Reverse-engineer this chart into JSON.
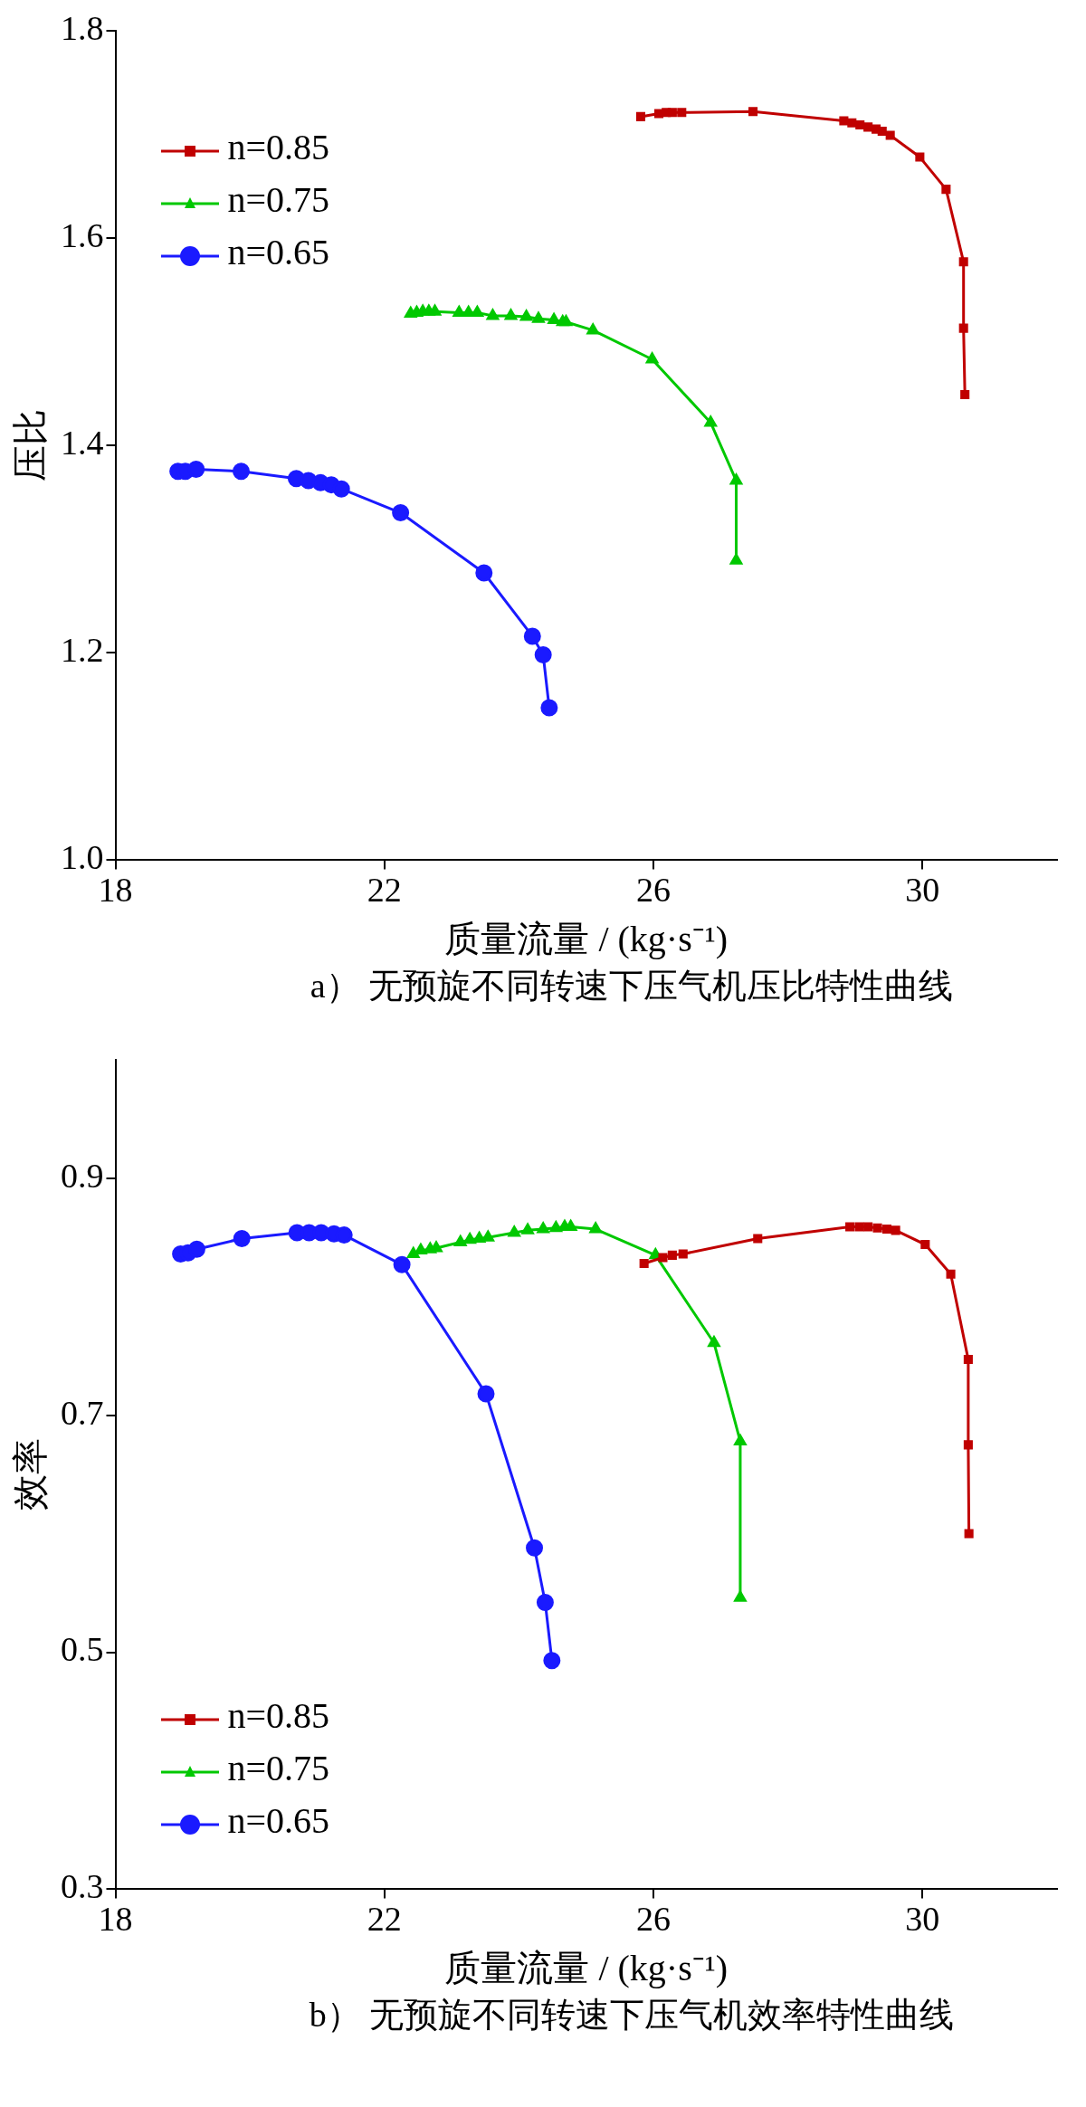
{
  "chart_data": [
    {
      "type": "line",
      "title": "a） 无预旋不同转速下压气机压比特性曲线",
      "xlabel": "质量流量 / (kg·s⁻¹)",
      "ylabel": "压比",
      "xlim": [
        18,
        32
      ],
      "xticks": [
        18,
        22,
        26,
        30
      ],
      "ylim": [
        1.0,
        1.8
      ],
      "yticks": [
        {
          "value": 1.0,
          "label": "1.0"
        },
        1.2,
        1.4,
        1.6,
        1.8
      ],
      "legend": "top left",
      "series": [
        {
          "name": "n=0.85",
          "color": "#c00000",
          "marker": "square",
          "x": [
            25.81,
            26.08,
            26.19,
            26.28,
            26.42,
            27.48,
            28.83,
            28.95,
            29.07,
            29.19,
            29.31,
            29.4,
            29.52,
            29.96,
            30.35,
            30.61,
            30.61,
            30.63
          ],
          "values": [
            1.717,
            1.72,
            1.721,
            1.721,
            1.721,
            1.722,
            1.713,
            1.711,
            1.709,
            1.707,
            1.705,
            1.703,
            1.699,
            1.678,
            1.647,
            1.577,
            1.513,
            1.449
          ]
        },
        {
          "name": "n=0.75",
          "color": "#00c800",
          "marker": "triangle",
          "x": [
            22.39,
            22.48,
            22.57,
            22.66,
            22.75,
            23.11,
            23.25,
            23.38,
            23.61,
            23.88,
            24.11,
            24.29,
            24.52,
            24.65,
            24.7,
            25.1,
            25.98,
            26.85,
            27.23,
            27.23
          ],
          "values": [
            1.527,
            1.528,
            1.529,
            1.529,
            1.529,
            1.528,
            1.528,
            1.528,
            1.525,
            1.525,
            1.524,
            1.522,
            1.521,
            1.519,
            1.519,
            1.511,
            1.483,
            1.422,
            1.366,
            1.289
          ]
        },
        {
          "name": "n=0.65",
          "color": "#1a1aff",
          "marker": "circle",
          "x": [
            18.93,
            19.04,
            19.2,
            19.87,
            20.69,
            20.87,
            21.05,
            21.21,
            21.36,
            22.24,
            23.48,
            24.2,
            24.36,
            24.45
          ],
          "values": [
            1.375,
            1.375,
            1.377,
            1.375,
            1.368,
            1.366,
            1.364,
            1.362,
            1.358,
            1.335,
            1.277,
            1.216,
            1.198,
            1.147
          ]
        }
      ]
    },
    {
      "type": "line",
      "title": "b） 无预旋不同转速下压气机效率特性曲线",
      "xlabel": "质量流量 / (kg·s⁻¹)",
      "ylabel": "效率",
      "xlim": [
        18,
        32
      ],
      "xticks": [
        18,
        22,
        26,
        30
      ],
      "ylim": [
        0.3,
        1.0
      ],
      "yticks": [
        0.3,
        0.5,
        0.7,
        0.9
      ],
      "legend": "bottom left",
      "series": [
        {
          "name": "n=0.85",
          "color": "#c00000",
          "marker": "square",
          "x": [
            25.86,
            26.14,
            26.28,
            26.44,
            27.55,
            28.92,
            29.06,
            29.19,
            29.33,
            29.47,
            29.6,
            30.04,
            30.42,
            30.68,
            30.68,
            30.69
          ],
          "values": [
            0.828,
            0.833,
            0.835,
            0.836,
            0.849,
            0.859,
            0.859,
            0.859,
            0.858,
            0.857,
            0.856,
            0.844,
            0.819,
            0.747,
            0.675,
            0.6
          ]
        },
        {
          "name": "n=0.75",
          "color": "#00c800",
          "marker": "triangle",
          "x": [
            22.43,
            22.54,
            22.68,
            22.77,
            23.13,
            23.27,
            23.41,
            23.54,
            23.93,
            24.13,
            24.36,
            24.55,
            24.68,
            24.77,
            25.14,
            26.03,
            26.9,
            27.29,
            27.29
          ],
          "values": [
            0.836,
            0.839,
            0.84,
            0.841,
            0.846,
            0.848,
            0.849,
            0.85,
            0.854,
            0.856,
            0.857,
            0.858,
            0.859,
            0.859,
            0.857,
            0.835,
            0.761,
            0.678,
            0.546
          ]
        },
        {
          "name": "n=0.65",
          "color": "#1a1aff",
          "marker": "circle",
          "x": [
            18.97,
            19.08,
            19.21,
            19.88,
            20.7,
            20.88,
            21.06,
            21.25,
            21.4,
            22.26,
            23.51,
            24.23,
            24.39,
            24.49
          ],
          "values": [
            0.836,
            0.837,
            0.84,
            0.849,
            0.854,
            0.854,
            0.854,
            0.853,
            0.852,
            0.827,
            0.718,
            0.588,
            0.542,
            0.493
          ]
        }
      ]
    }
  ]
}
